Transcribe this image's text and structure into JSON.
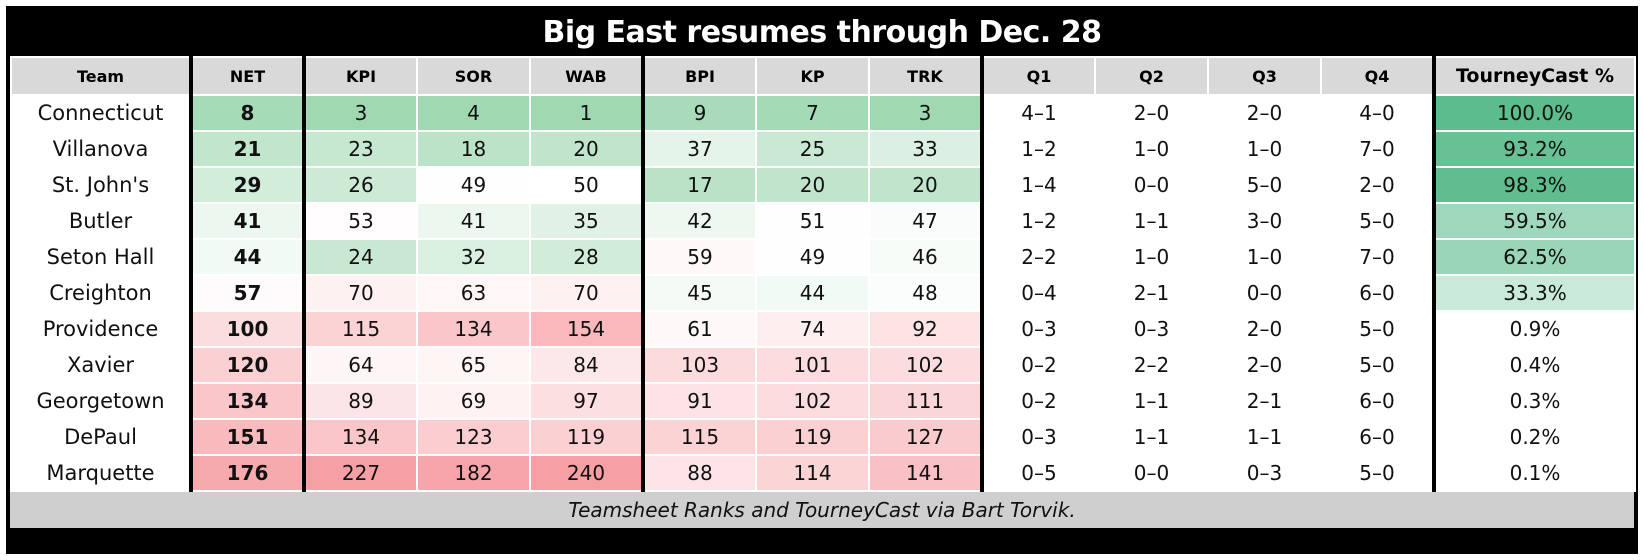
{
  "title": "Big East resumes through Dec. 28",
  "table": {
    "columns": [
      "Team",
      "NET",
      "KPI",
      "SOR",
      "WAB",
      "BPI",
      "KP",
      "TRK",
      "Q1",
      "Q2",
      "Q3",
      "Q4",
      "TourneyCast %"
    ],
    "rows": [
      [
        "Connecticut",
        8,
        3,
        4,
        1,
        9,
        7,
        3,
        "4–1",
        "2–0",
        "2–0",
        "4–0",
        "100.0%"
      ],
      [
        "Villanova",
        21,
        23,
        18,
        20,
        37,
        25,
        33,
        "1–2",
        "1–0",
        "1–0",
        "7–0",
        "93.2%"
      ],
      [
        "St. John's",
        29,
        26,
        49,
        50,
        17,
        20,
        20,
        "1–4",
        "0–0",
        "5–0",
        "2–0",
        "98.3%"
      ],
      [
        "Butler",
        41,
        53,
        41,
        35,
        42,
        51,
        47,
        "1–2",
        "1–1",
        "3–0",
        "5–0",
        "59.5%"
      ],
      [
        "Seton Hall",
        44,
        24,
        32,
        28,
        59,
        49,
        46,
        "2–2",
        "1–0",
        "1–0",
        "7–0",
        "62.5%"
      ],
      [
        "Creighton",
        57,
        70,
        63,
        70,
        45,
        44,
        48,
        "0–4",
        "2–1",
        "0–0",
        "6–0",
        "33.3%"
      ],
      [
        "Providence",
        100,
        115,
        134,
        154,
        61,
        74,
        92,
        "0–3",
        "0–3",
        "2–0",
        "5–0",
        "0.9%"
      ],
      [
        "Xavier",
        120,
        64,
        65,
        84,
        103,
        101,
        102,
        "0–2",
        "2–2",
        "2–0",
        "5–0",
        "0.4%"
      ],
      [
        "Georgetown",
        134,
        89,
        69,
        97,
        91,
        102,
        111,
        "0–2",
        "1–1",
        "2–1",
        "6–0",
        "0.3%"
      ],
      [
        "DePaul",
        151,
        134,
        123,
        119,
        115,
        119,
        127,
        "0–3",
        "1–1",
        "1–1",
        "6–0",
        "0.2%"
      ],
      [
        "Marquette",
        176,
        227,
        182,
        240,
        88,
        114,
        141,
        "0–5",
        "0–0",
        "0–3",
        "5–0",
        "0.1%"
      ]
    ]
  },
  "footer": "Teamsheet Ranks and TourneyCast via Bart Torvik."
}
